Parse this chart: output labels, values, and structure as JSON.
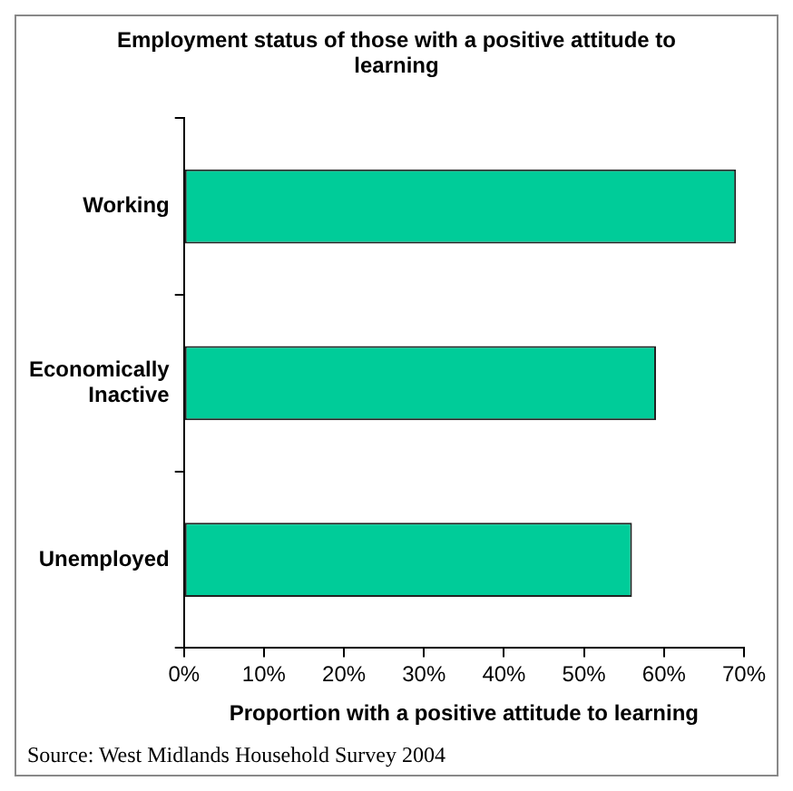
{
  "chart_data": {
    "type": "bar",
    "orientation": "horizontal",
    "title": "Employment status of those with a positive attitude to learning",
    "xlabel": "Proportion with a positive attitude to learning",
    "categories": [
      "Working",
      "Economically Inactive",
      "Unemployed"
    ],
    "values": [
      69,
      59,
      56
    ],
    "color": "#00cc99",
    "xlim": [
      0,
      70
    ],
    "xticks": [
      {
        "value": 0,
        "label": "0%"
      },
      {
        "value": 10,
        "label": "10%"
      },
      {
        "value": 20,
        "label": "20%"
      },
      {
        "value": 30,
        "label": "30%"
      },
      {
        "value": 40,
        "label": "40%"
      },
      {
        "value": 50,
        "label": "50%"
      },
      {
        "value": 60,
        "label": "60%"
      },
      {
        "value": 70,
        "label": "70%"
      }
    ],
    "grid": false,
    "legend": false,
    "annotations": [
      "Source: West Midlands Household Survey 2004"
    ]
  }
}
